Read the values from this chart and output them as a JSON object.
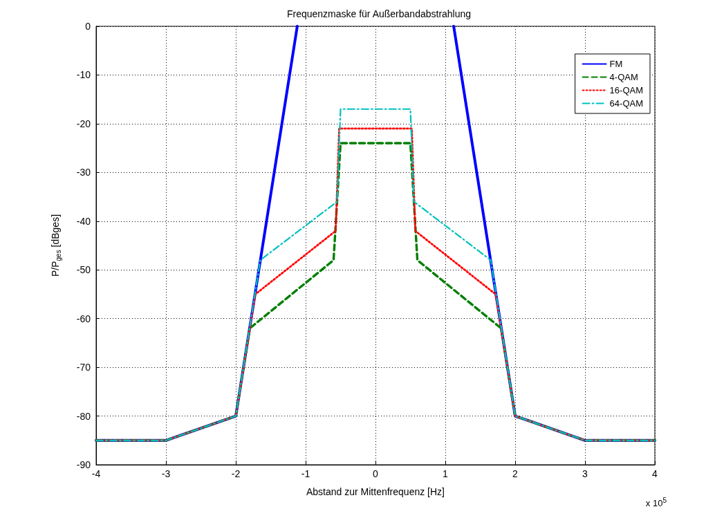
{
  "chart_data": {
    "type": "line",
    "title": "Frequenzmaske für Außerbandabstrahlung",
    "xlabel": "Abstand zur Mittenfrequenz [Hz]",
    "ylabel": "P/P$_{ges}$ [dBges]",
    "annotations": [
      "x 10$^{5}$"
    ],
    "xlim": [
      -4,
      4
    ],
    "xticks": [
      -4,
      -3,
      -2,
      -1,
      0,
      1,
      2,
      3,
      4
    ],
    "ylim": [
      -90,
      0
    ],
    "yticks": [
      -90,
      -80,
      -70,
      -60,
      -50,
      -40,
      -30,
      -20,
      -10,
      0
    ],
    "grid": true,
    "legend": "top right",
    "marker": "none",
    "series": [
      {
        "name": "FM",
        "color": "#0000ff",
        "line_style": "solid",
        "x": [
          -4,
          -3,
          -2,
          -1.12,
          null,
          1.12,
          2,
          3,
          4
        ],
        "values": [
          -85,
          -85,
          -80,
          0,
          null,
          0,
          -80,
          -85,
          -85
        ]
      },
      {
        "name": "4-QAM",
        "color": "#007f00",
        "line_style": "dashed",
        "x": [
          -4,
          -3,
          -2,
          -1.8,
          -0.6,
          -0.5,
          0.5,
          0.6,
          1.8,
          2,
          3,
          4
        ],
        "values": [
          -85,
          -85,
          -80,
          -62,
          -48,
          -24,
          -24,
          -48,
          -62,
          -80,
          -85,
          -85
        ]
      },
      {
        "name": "16-QAM",
        "color": "#ff0000",
        "line_style": "dotted",
        "x": [
          -4,
          -3,
          -2,
          -1.72,
          -0.57,
          -0.52,
          0.52,
          0.57,
          1.72,
          2,
          3,
          4
        ],
        "values": [
          -85,
          -85,
          -80,
          -55,
          -42,
          -21,
          -21,
          -42,
          -55,
          -80,
          -85,
          -85
        ]
      },
      {
        "name": "64-QAM",
        "color": "#00bfbf",
        "line_style": "dashdot",
        "x": [
          -4,
          -3,
          -2,
          -1.65,
          -0.55,
          -0.5,
          0.5,
          0.55,
          1.65,
          2,
          3,
          4
        ],
        "values": [
          -85,
          -85,
          -80,
          -48,
          -36,
          -17,
          -17,
          -36,
          -48,
          -80,
          -85,
          -85
        ]
      }
    ]
  }
}
